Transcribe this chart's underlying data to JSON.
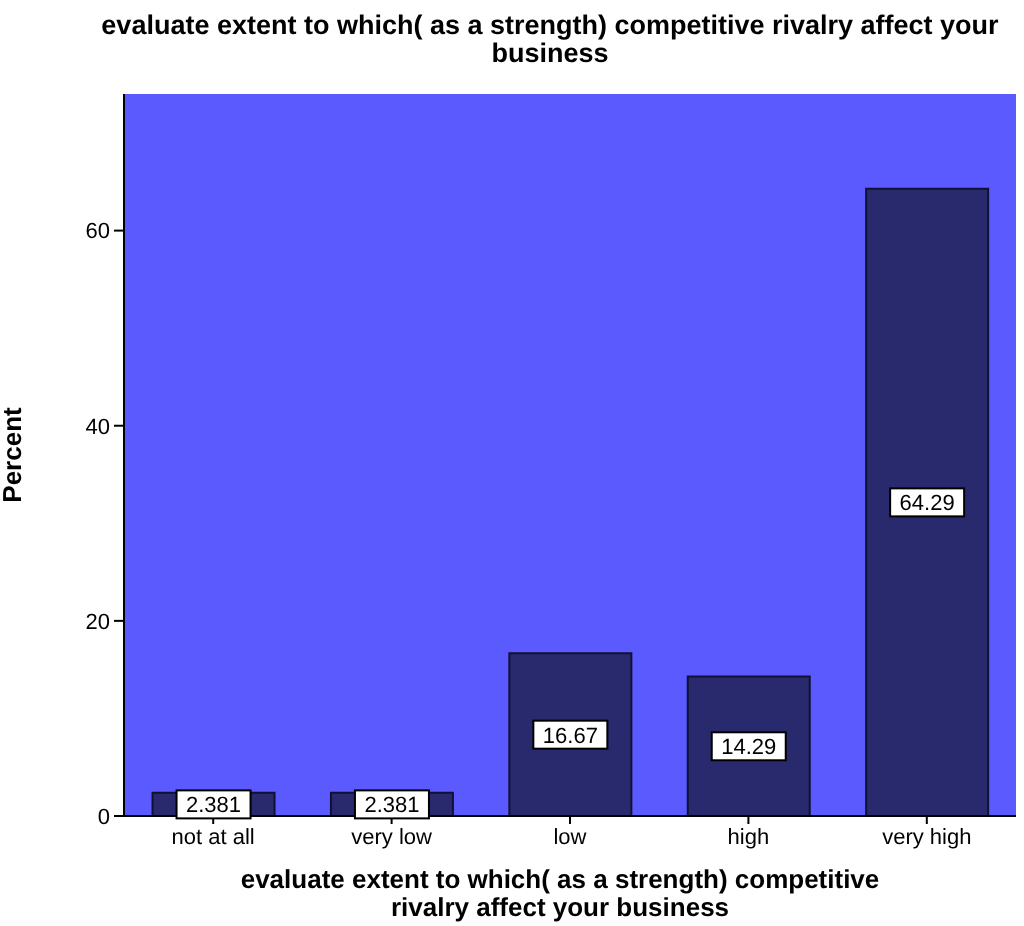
{
  "chart_data": {
    "type": "bar",
    "title": "evaluate extent to which( as a strength) competitive rivalry affect your business",
    "xlabel": "evaluate extent to which( as a strength) competitive rivalry affect your business",
    "ylabel": "Percent",
    "categories": [
      "not at all",
      "very low",
      "low",
      "high",
      "very high"
    ],
    "values": [
      2.381,
      2.381,
      16.67,
      14.29,
      64.29
    ],
    "color": "#29296e",
    "ylim": [
      0,
      74
    ],
    "yticks": [
      0,
      20,
      40,
      60
    ],
    "grid": false,
    "data_labels": true
  }
}
